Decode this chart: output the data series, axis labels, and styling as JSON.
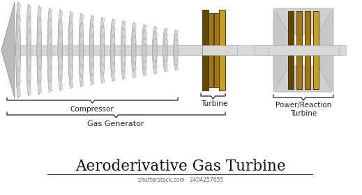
{
  "title": "Aeroderivative Gas Turbine",
  "subtitle": "shutterstock.com · 2404257655",
  "label_compressor": "Compressor",
  "label_turbine": "Turbine",
  "label_gas_generator": "Gas Generator",
  "label_power_turbine": "Power/Reaction\nTurbine",
  "bg_color": "#ffffff",
  "shaft_gray": "#c8c8c8",
  "shaft_edge": "#aaaaaa",
  "disc_light": "#e8e8e8",
  "disc_mid": "#c0c0c0",
  "disc_dark": "#909090",
  "blade_fill": "#d8d8d8",
  "blade_edge": "#aaaaaa",
  "gold_top": "#c8a020",
  "gold_mid": "#a07818",
  "gold_bot": "#604808",
  "gold_edge": "#4a3808",
  "pt_casing": "#d0d0d0",
  "pt_casing_edge": "#aaaaaa",
  "label_color": "#222222",
  "brace_color": "#333333",
  "title_color": "#111111",
  "sub_color": "#666666"
}
